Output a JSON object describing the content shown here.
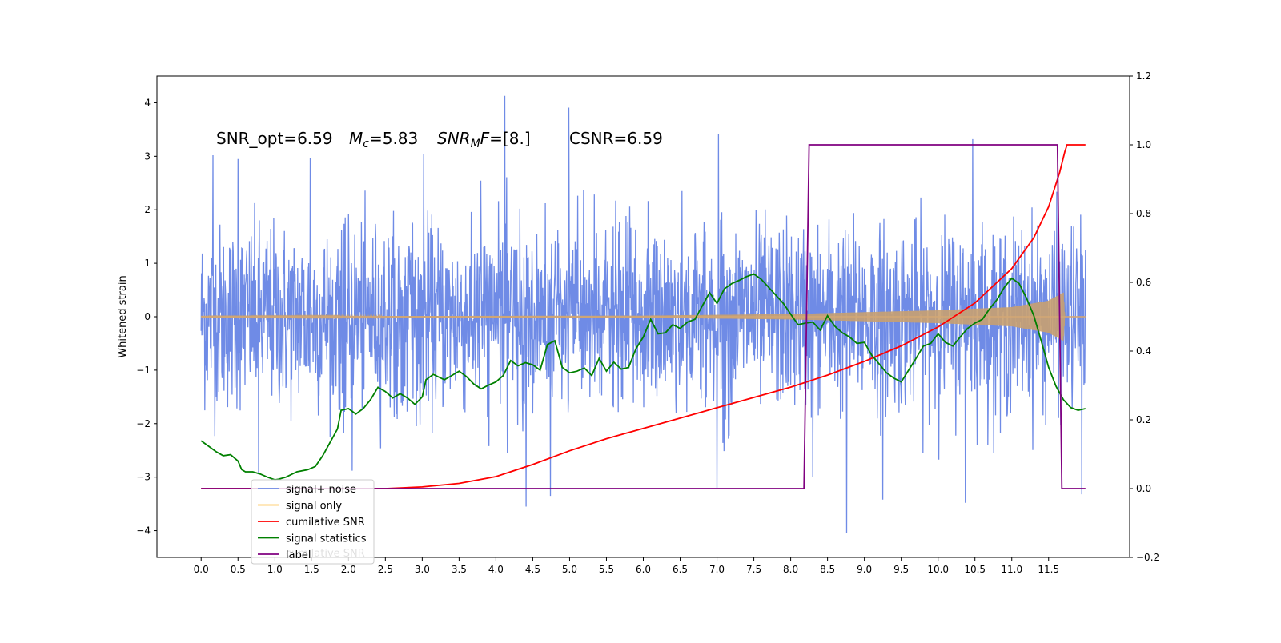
{
  "chart_data": {
    "type": "line",
    "ylabel": "Whitened strain",
    "annotation": {
      "snr_opt": "SNR_opt=6.59",
      "mc_var": "M",
      "mc_sub": "c",
      "mc_val": "=5.83",
      "snrmf_var": "SNR",
      "snrmf_sub": "M",
      "snrmf_f": "F",
      "snrmf_val": "=[8.]",
      "csnr": "CSNR=6.59"
    },
    "xlim": [
      -0.6,
      12.6
    ],
    "x_ticks": [
      "0.0",
      "0.5",
      "1.0",
      "1.5",
      "2.0",
      "2.5",
      "3.0",
      "3.5",
      "4.0",
      "4.5",
      "5.0",
      "5.5",
      "6.0",
      "6.5",
      "7.0",
      "7.5",
      "8.0",
      "8.5",
      "9.0",
      "9.5",
      "10.0",
      "10.5",
      "11.0",
      "11.5"
    ],
    "ylim_left": [
      -4.5,
      4.5
    ],
    "y_ticks_left": [
      "−4",
      "−3",
      "−2",
      "−1",
      "0",
      "1",
      "2",
      "3",
      "4"
    ],
    "ylim_right": [
      -0.2,
      1.2
    ],
    "y_ticks_right": [
      "−0.2",
      "0.0",
      "0.2",
      "0.4",
      "0.6",
      "0.8",
      "1.0",
      "1.2"
    ],
    "legend": {
      "placement": "lower-left",
      "ghost_text": "cumilative SNR",
      "entries": [
        {
          "label": "signal+ noise",
          "color": "#6f8be6"
        },
        {
          "label": "signal only",
          "color": "#ffc04d"
        },
        {
          "label": "cumilative SNR",
          "color": "#ff0000"
        },
        {
          "label": "signal statistics",
          "color": "#008000"
        },
        {
          "label": "label",
          "color": "#800080"
        }
      ]
    },
    "series": [
      {
        "name": "signal+ noise",
        "axis": "left",
        "color": "#6f8be6",
        "kind": "noise",
        "x_range": [
          0,
          12
        ],
        "typical_band": [
          -1.8,
          1.8
        ],
        "spikes": [
          {
            "x": 4.12,
            "y": 4.13
          },
          {
            "x": 4.99,
            "y": 3.91
          },
          {
            "x": 7.02,
            "y": 3.42
          },
          {
            "x": 10.47,
            "y": 3.32
          },
          {
            "x": 8.76,
            "y": -4.05
          },
          {
            "x": 4.41,
            "y": -3.55
          },
          {
            "x": 10.37,
            "y": -3.48
          },
          {
            "x": 9.25,
            "y": -3.42
          },
          {
            "x": 4.74,
            "y": -3.35
          },
          {
            "x": 11.95,
            "y": -3.32
          },
          {
            "x": 0.16,
            "y": 3.02
          },
          {
            "x": 0.5,
            "y": 2.95
          },
          {
            "x": 3.02,
            "y": 3.05
          },
          {
            "x": 1.48,
            "y": 2.97
          },
          {
            "x": 0.78,
            "y": -2.95
          },
          {
            "x": 2.05,
            "y": -2.88
          },
          {
            "x": 7.0,
            "y": -3.2
          },
          {
            "x": 8.3,
            "y": -3.0
          }
        ]
      },
      {
        "name": "signal only",
        "axis": "left",
        "color": "#ffc04d",
        "kind": "chirp",
        "x_range": [
          0,
          12
        ],
        "amplitude_points": [
          [
            0,
            0.005
          ],
          [
            6,
            0.02
          ],
          [
            8,
            0.05
          ],
          [
            10,
            0.12
          ],
          [
            11,
            0.18
          ],
          [
            11.5,
            0.3
          ],
          [
            11.7,
            0.45
          ],
          [
            11.72,
            0.0
          ],
          [
            12,
            0.0
          ]
        ]
      },
      {
        "name": "cumilative SNR",
        "axis": "right",
        "color": "#ff0000",
        "x": [
          0,
          2.5,
          3.0,
          3.5,
          4.0,
          4.5,
          5.0,
          5.5,
          6.0,
          6.5,
          7.0,
          7.5,
          8.0,
          8.5,
          9.0,
          9.5,
          10.0,
          10.5,
          11.0,
          11.3,
          11.5,
          11.65,
          11.72,
          11.75,
          12.0
        ],
        "y": [
          0.0,
          0.0,
          0.005,
          0.015,
          0.035,
          0.07,
          0.11,
          0.145,
          0.175,
          0.205,
          0.235,
          0.265,
          0.295,
          0.33,
          0.37,
          0.415,
          0.47,
          0.54,
          0.64,
          0.73,
          0.82,
          0.92,
          0.98,
          1.0,
          1.0
        ]
      },
      {
        "name": "signal statistics",
        "axis": "left",
        "color": "#008000",
        "x": [
          0,
          0.1,
          0.2,
          0.3,
          0.4,
          0.5,
          0.55,
          0.6,
          0.7,
          0.8,
          0.9,
          1.0,
          1.05,
          1.15,
          1.3,
          1.45,
          1.55,
          1.65,
          1.75,
          1.85,
          1.9,
          2.0,
          2.1,
          2.2,
          2.3,
          2.4,
          2.5,
          2.6,
          2.7,
          2.8,
          2.9,
          3.0,
          3.05,
          3.15,
          3.3,
          3.4,
          3.5,
          3.6,
          3.7,
          3.8,
          3.9,
          4.0,
          4.1,
          4.2,
          4.3,
          4.4,
          4.5,
          4.6,
          4.7,
          4.8,
          4.9,
          5.0,
          5.1,
          5.2,
          5.3,
          5.4,
          5.5,
          5.6,
          5.7,
          5.8,
          5.9,
          6.0,
          6.1,
          6.2,
          6.3,
          6.4,
          6.5,
          6.6,
          6.7,
          6.8,
          6.9,
          7.0,
          7.1,
          7.2,
          7.3,
          7.4,
          7.5,
          7.6,
          7.7,
          7.8,
          7.9,
          8.0,
          8.1,
          8.2,
          8.3,
          8.4,
          8.5,
          8.6,
          8.7,
          8.8,
          8.9,
          9.0,
          9.1,
          9.2,
          9.3,
          9.4,
          9.5,
          9.6,
          9.7,
          9.8,
          9.9,
          10.0,
          10.1,
          10.2,
          10.3,
          10.4,
          10.5,
          10.6,
          10.7,
          10.8,
          10.9,
          11.0,
          11.1,
          11.2,
          11.3,
          11.4,
          11.5,
          11.6,
          11.7,
          11.8,
          11.9,
          12.0
        ],
        "y": [
          -2.32,
          -2.42,
          -2.52,
          -2.6,
          -2.58,
          -2.7,
          -2.86,
          -2.9,
          -2.9,
          -2.94,
          -3.0,
          -3.05,
          -3.04,
          -3.0,
          -2.9,
          -2.86,
          -2.8,
          -2.6,
          -2.35,
          -2.1,
          -1.75,
          -1.72,
          -1.82,
          -1.72,
          -1.55,
          -1.32,
          -1.4,
          -1.52,
          -1.44,
          -1.52,
          -1.64,
          -1.5,
          -1.18,
          -1.08,
          -1.18,
          -1.1,
          -1.02,
          -1.12,
          -1.26,
          -1.35,
          -1.28,
          -1.22,
          -1.1,
          -0.82,
          -0.92,
          -0.86,
          -0.9,
          -1.0,
          -0.52,
          -0.45,
          -0.95,
          -1.05,
          -1.02,
          -0.96,
          -1.1,
          -0.78,
          -1.02,
          -0.85,
          -0.98,
          -0.95,
          -0.6,
          -0.38,
          -0.05,
          -0.32,
          -0.3,
          -0.15,
          -0.22,
          -0.1,
          -0.05,
          0.2,
          0.45,
          0.25,
          0.52,
          0.62,
          0.68,
          0.75,
          0.8,
          0.7,
          0.55,
          0.4,
          0.25,
          0.05,
          -0.15,
          -0.12,
          -0.1,
          -0.25,
          0.02,
          -0.18,
          -0.3,
          -0.38,
          -0.5,
          -0.48,
          -0.72,
          -0.88,
          -1.05,
          -1.15,
          -1.22,
          -1.0,
          -0.78,
          -0.55,
          -0.5,
          -0.32,
          -0.48,
          -0.55,
          -0.38,
          -0.22,
          -0.12,
          -0.05,
          0.15,
          0.32,
          0.55,
          0.72,
          0.62,
          0.35,
          0.02,
          -0.45,
          -0.95,
          -1.3,
          -1.55,
          -1.7,
          -1.75,
          -1.72
        ]
      },
      {
        "name": "label",
        "axis": "right",
        "color": "#800080",
        "x": [
          0,
          8.18,
          8.25,
          11.62,
          11.68,
          12.0
        ],
        "y": [
          0,
          0,
          1,
          1,
          0,
          0
        ]
      }
    ]
  }
}
